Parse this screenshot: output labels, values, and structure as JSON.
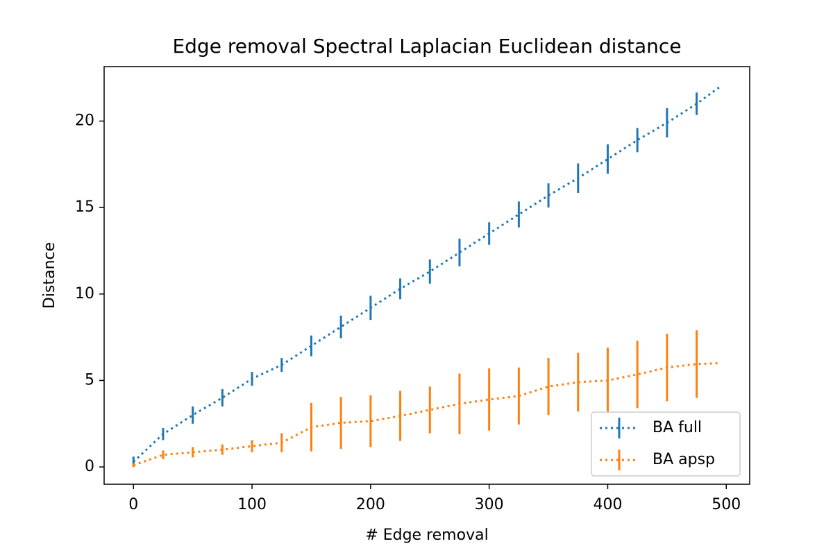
{
  "chart_data": {
    "type": "errorbar_line",
    "title": "Edge removal Spectral Laplacian Euclidean distance",
    "x_label": "# Edge removal",
    "y_label": "Distance",
    "x": [
      0,
      25,
      50,
      75,
      100,
      125,
      150,
      175,
      200,
      225,
      250,
      275,
      300,
      325,
      350,
      375,
      400,
      425,
      450,
      475,
      495
    ],
    "series": [
      {
        "name": "BA full",
        "color": "#1f77b4",
        "values": [
          0.3,
          1.9,
          3.0,
          4.0,
          5.1,
          5.9,
          7.0,
          8.1,
          9.2,
          10.3,
          11.3,
          12.4,
          13.5,
          14.6,
          15.7,
          16.7,
          17.8,
          18.9,
          19.9,
          21.0,
          22.0
        ],
        "errors": [
          0.3,
          0.35,
          0.5,
          0.5,
          0.4,
          0.4,
          0.6,
          0.65,
          0.7,
          0.6,
          0.7,
          0.8,
          0.65,
          0.75,
          0.7,
          0.85,
          0.85,
          0.7,
          0.85,
          0.65,
          null
        ]
      },
      {
        "name": "BA apsp",
        "color": "#ff7f0e",
        "values": [
          0.1,
          0.7,
          0.85,
          1.0,
          1.2,
          1.4,
          2.3,
          2.55,
          2.65,
          2.95,
          3.3,
          3.65,
          3.9,
          4.1,
          4.65,
          4.9,
          5.0,
          5.35,
          5.75,
          5.95,
          6.0
        ],
        "errors": [
          0.1,
          0.25,
          0.3,
          0.3,
          0.35,
          0.55,
          1.4,
          1.5,
          1.5,
          1.45,
          1.35,
          1.75,
          1.8,
          1.65,
          1.65,
          1.7,
          1.9,
          1.95,
          1.95,
          1.95,
          null
        ]
      }
    ],
    "xlim": [
      -24.75,
      519.75
    ],
    "xticks": [
      0,
      100,
      200,
      300,
      400,
      500
    ],
    "ylim": [
      -1.0,
      23.15
    ],
    "yticks": [
      0,
      5,
      10,
      15,
      20
    ],
    "grid": false,
    "legend": "lower right"
  }
}
